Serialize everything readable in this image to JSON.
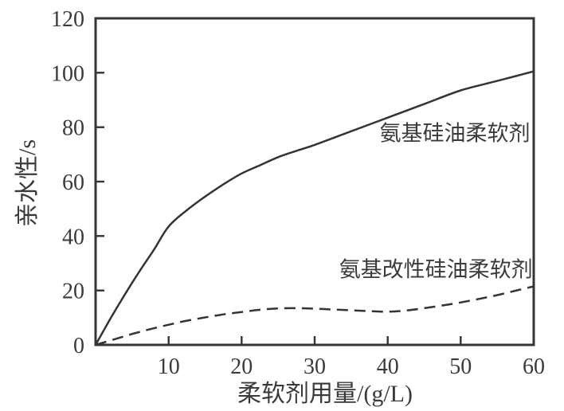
{
  "page": {
    "background_color": "#ffffff",
    "line_color": "#343434",
    "text_color": "#3a3a3a"
  },
  "chart_data": {
    "type": "line",
    "title": "",
    "xlabel": "柔软剂用量/(g/L)",
    "ylabel": "亲水性/s",
    "xlim": [
      0,
      60
    ],
    "ylim": [
      0,
      120
    ],
    "xticks": [
      10,
      20,
      30,
      40,
      50,
      60
    ],
    "yticks": [
      0,
      20,
      40,
      60,
      80,
      100,
      120
    ],
    "grid": false,
    "legend_position": "inline-annotations",
    "series": [
      {
        "name": "氨基硅油柔软剂",
        "style": "solid",
        "label_x": 49.2,
        "label_y": 78,
        "points": [
          [
            0,
            0
          ],
          [
            2,
            9.5
          ],
          [
            4,
            18.5
          ],
          [
            6,
            27
          ],
          [
            8,
            35
          ],
          [
            10,
            43.5
          ],
          [
            12.5,
            49.5
          ],
          [
            15,
            54.5
          ],
          [
            17.5,
            59
          ],
          [
            20,
            63
          ],
          [
            22.5,
            66
          ],
          [
            25,
            69
          ],
          [
            27.5,
            71.3
          ],
          [
            30,
            73.5
          ],
          [
            35,
            78.5
          ],
          [
            40,
            83.5
          ],
          [
            45,
            88.5
          ],
          [
            50,
            93.5
          ],
          [
            55,
            97
          ],
          [
            60,
            100.5
          ]
        ]
      },
      {
        "name": "氨基改性硅油柔软剂",
        "style": "dashed",
        "label_x": 46.6,
        "label_y": 28,
        "points": [
          [
            0,
            0
          ],
          [
            2.5,
            2
          ],
          [
            5,
            4
          ],
          [
            7.5,
            5.8
          ],
          [
            10,
            7.4
          ],
          [
            12.5,
            8.9
          ],
          [
            15,
            10.1
          ],
          [
            17.5,
            11.2
          ],
          [
            20,
            12.1
          ],
          [
            22.5,
            12.9
          ],
          [
            25,
            13.4
          ],
          [
            27.5,
            13.5
          ],
          [
            30,
            13.3
          ],
          [
            32.5,
            13
          ],
          [
            35,
            12.7
          ],
          [
            37.5,
            12.4
          ],
          [
            40,
            12.2
          ],
          [
            42.5,
            12.6
          ],
          [
            45,
            13.5
          ],
          [
            47.5,
            14.5
          ],
          [
            50,
            15.6
          ],
          [
            52.5,
            16.9
          ],
          [
            55,
            18.3
          ],
          [
            57.5,
            19.9
          ],
          [
            60,
            21.5
          ]
        ]
      }
    ]
  }
}
